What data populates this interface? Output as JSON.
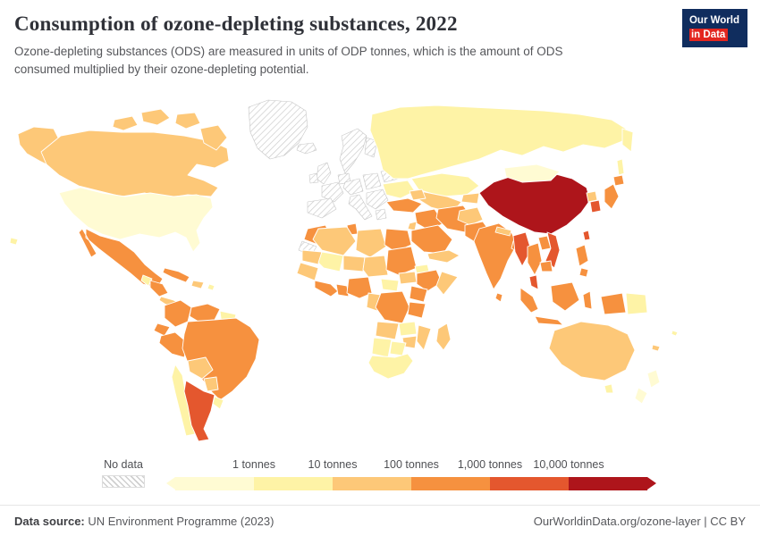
{
  "header": {
    "title": "Consumption of ozone-depleting substances, 2022",
    "subtitle": "Ozone-depleting substances (ODS) are measured in units of ODP tonnes, which is the amount of ODS consumed multiplied by their ozone-depleting potential.",
    "logo": {
      "line1": "Our World",
      "line2": "in Data"
    }
  },
  "legend": {
    "no_data_label": "No data",
    "tick_labels": [
      "1 tonnes",
      "10 tonnes",
      "100 tonnes",
      "1,000 tonnes",
      "10,000 tonnes"
    ]
  },
  "footer": {
    "source_label": "Data source:",
    "source_text": "UN Environment Programme (2023)",
    "credit_text": "OurWorldinData.org/ozone-layer | CC BY"
  },
  "colors": {
    "logo_bg": "#102d5e",
    "logo_accent": "#e3261f",
    "nodata_stroke": "#c6c6c6"
  },
  "chart_data": {
    "type": "choropleth",
    "title": "Consumption of ozone-depleting substances, 2022",
    "unit": "ODP tonnes",
    "scale": "log",
    "source": "UN Environment Programme (2023)",
    "bins": [
      {
        "label": "< 1 tonnes",
        "color": "#fffbd3"
      },
      {
        "label": "1–10 tonnes",
        "color": "#fef3a6"
      },
      {
        "label": "10–100 tonnes",
        "color": "#fdc878"
      },
      {
        "label": "100–1,000 tonnes",
        "color": "#f6913f"
      },
      {
        "label": "1,000–10,000 tonnes",
        "color": "#e4572e"
      },
      {
        "label": "> 10,000 tonnes",
        "color": "#ae151b"
      }
    ],
    "region_bins": {
      "alaska": 2,
      "canada": 2,
      "arctic_islands_a": 2,
      "arctic_islands_b": 2,
      "arctic_islands_c": 2,
      "baffin_island": 2,
      "greenland": -1,
      "usa": 0,
      "mexico": 3,
      "guatemala": 1,
      "honduras_nicaragua": 3,
      "costa_rica_panama": 2,
      "cuba": 3,
      "hispaniola": 2,
      "puerto_rico": 1,
      "hawaii": 1,
      "colombia": 3,
      "venezuela": 3,
      "guyanas": 1,
      "ecuador": 3,
      "peru": 3,
      "brazil": 3,
      "bolivia": 2,
      "paraguay": 2,
      "chile": 1,
      "argentina": 4,
      "uruguay": 1,
      "iceland": -1,
      "uk": -1,
      "ireland": -1,
      "norway_sweden": -1,
      "finland": -1,
      "denmark_benelux": -1,
      "france": -1,
      "iberia": -1,
      "germany": -1,
      "italy": -1,
      "poland_baltics": -1,
      "belarus": -1,
      "balkans": -1,
      "greece": -1,
      "ukraine": 1,
      "russia": 1,
      "kamchatka": 1,
      "sakhalin": 1,
      "kazakhstan": 1,
      "uzbekistan_turkmenistan": 2,
      "kyrgyzstan_tajikistan": 2,
      "caucasus": 2,
      "turkey": 3,
      "syria_iraq": 3,
      "jordan_israel": 2,
      "saudi_arabia": 3,
      "iran": 3,
      "yemen_oman": 2,
      "afghanistan": 2,
      "pakistan": 3,
      "india": 3,
      "sri_lanka": 3,
      "nepal_bhutan": 2,
      "bangladesh": 3,
      "china": 5,
      "mongolia": 0,
      "north_korea": 2,
      "south_korea": 4,
      "japan": 3,
      "hokkaido": 3,
      "taiwan": 4,
      "myanmar": 4,
      "thailand": 3,
      "laos": 3,
      "vietnam": 4,
      "cambodia": 3,
      "malaysia": 4,
      "sumatra": 3,
      "java": 3,
      "borneo": 3,
      "sulawesi": 3,
      "philippines": 3,
      "mindanao": 3,
      "west_papua": 3,
      "papua_new_guinea": 1,
      "morocco": 3,
      "western_sahara": -1,
      "tunisia": 3,
      "algeria": 2,
      "libya": 2,
      "egypt": 3,
      "mauritania": 2,
      "mali": 1,
      "niger": 2,
      "chad": 2,
      "sudan": 3,
      "eritrea_djibouti": 1,
      "senegal_guinea": 2,
      "sierra_leone_liberia_ivory": 3,
      "ghana_togo_benin": 3,
      "nigeria": 3,
      "cameroon_gabon": 2,
      "central_african_republic": 1,
      "south_sudan": 2,
      "ethiopia": 3,
      "somalia": 2,
      "uganda_kenya": 3,
      "drc": 3,
      "tanzania": 3,
      "angola": 2,
      "zambia": 1,
      "mozambique": 2,
      "zimbabwe": 2,
      "namibia": 1,
      "botswana": 1,
      "south_africa": 1,
      "madagascar": 2,
      "australia": 2,
      "tasmania": 1,
      "new_zealand_north": 0,
      "new_zealand_south": 0,
      "fiji": 1,
      "new_caledonia": 2
    }
  }
}
